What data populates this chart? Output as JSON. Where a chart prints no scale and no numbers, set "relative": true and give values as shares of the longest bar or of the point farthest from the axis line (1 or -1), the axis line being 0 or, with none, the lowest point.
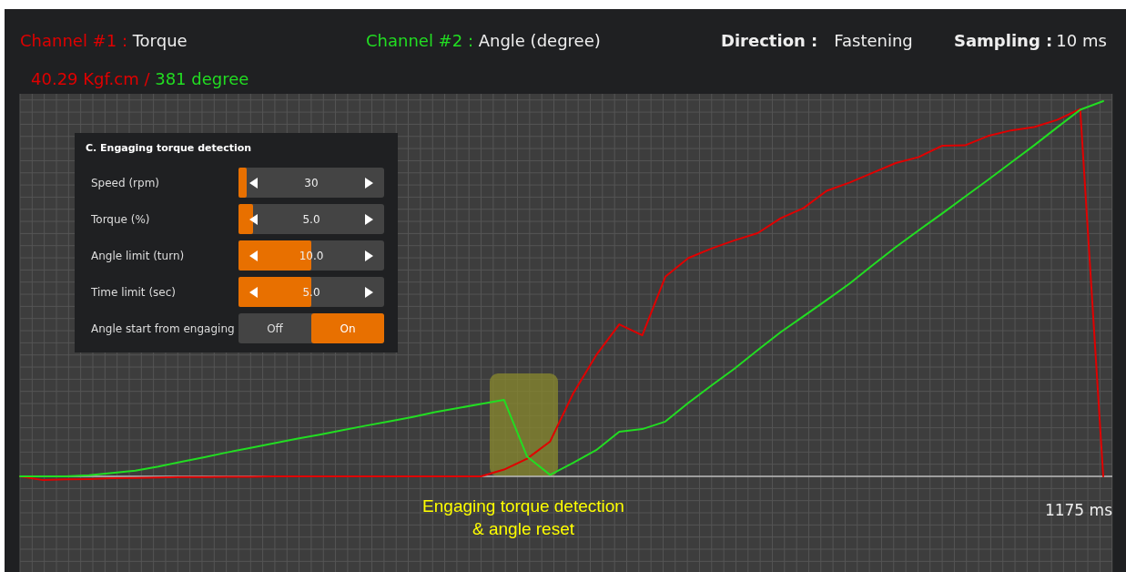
{
  "chart_data": {
    "type": "line",
    "relative": true,
    "grid": true,
    "subtitle": "40.29 Kgf.cm / 381 degree",
    "categories": [
      null,
      null,
      null,
      null,
      null,
      null,
      null,
      null,
      null,
      null,
      null,
      null,
      null,
      null,
      null,
      null,
      null,
      null,
      null,
      null,
      null,
      null,
      null,
      null,
      null,
      null,
      null,
      null,
      null,
      null,
      null,
      null,
      null,
      null,
      null,
      null,
      null,
      null,
      null,
      null,
      null,
      null,
      null,
      null,
      null,
      null,
      null,
      null
    ],
    "series": [
      {
        "name": "Channel #1 : Torque",
        "color": "#e00000",
        "values": [
          0,
          -0.01,
          -0.008,
          -0.007,
          -0.005,
          -0.004,
          -0.003,
          -0.002,
          -0.002,
          -0.001,
          -0.001,
          0,
          0,
          0,
          0,
          0,
          0,
          0,
          0,
          0,
          0,
          0.018,
          0.047,
          0.093,
          0.221,
          0.323,
          0.405,
          0.376,
          0.532,
          0.582,
          0.607,
          0.629,
          0.648,
          0.688,
          0.715,
          0.761,
          0.783,
          0.809,
          0.835,
          0.851,
          0.881,
          0.882,
          0.907,
          0.922,
          0.931,
          0.95,
          0.979,
          0
        ]
      },
      {
        "name": "Channel #2 : Angle (degree)",
        "color": "#22dd22",
        "values": [
          0,
          0,
          0,
          0.003,
          0.009,
          0.015,
          0.026,
          0.039,
          0.051,
          0.064,
          0.076,
          0.088,
          0.1,
          0.111,
          0.123,
          0.135,
          0.146,
          0.158,
          0.171,
          0.182,
          0.193,
          0.204,
          0.053,
          0.004,
          0.036,
          0.07,
          0.119,
          0.126,
          0.146,
          0.196,
          0.242,
          0.287,
          0.336,
          0.384,
          0.427,
          0.47,
          0.514,
          0.563,
          0.611,
          0.656,
          0.7,
          0.745,
          0.79,
          0.836,
          0.882,
          0.93,
          0.977,
          1
        ]
      }
    ],
    "annotations": [
      "Direction : Fastening",
      "Sampling : 10 ms",
      "C. Engaging torque detection",
      "Speed (rpm)",
      "30",
      "Torque (%)",
      "5.0",
      "Angle limit (turn)",
      "10.0",
      "Time limit (sec)",
      "5.0",
      "Angle start from engaging",
      "Off",
      "On",
      "Engaging torque detection\n& angle reset",
      "1175 ms"
    ]
  }
}
